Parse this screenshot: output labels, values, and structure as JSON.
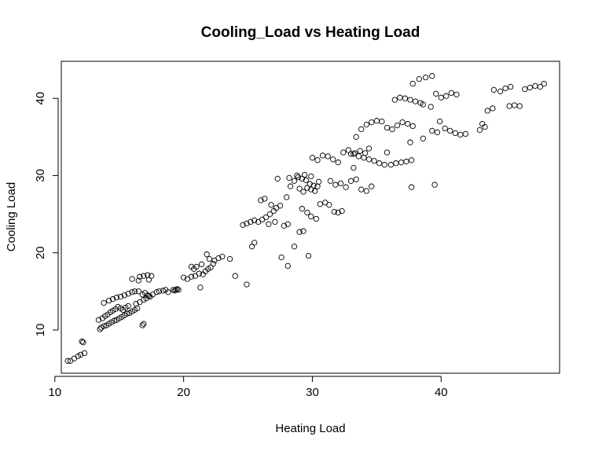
{
  "chart_data": {
    "type": "scatter",
    "title": "Cooling_Load vs Heating Load",
    "xlabel": "Heating Load",
    "ylabel": "Cooling Load",
    "xlim": [
      10.5,
      49.2
    ],
    "ylim": [
      4.4,
      44.8
    ],
    "xticks": [
      10,
      20,
      30,
      40
    ],
    "yticks": [
      10,
      20,
      30,
      40
    ],
    "grid": false,
    "points": [
      [
        11.0,
        6.0
      ],
      [
        11.2,
        6.0
      ],
      [
        11.5,
        6.3
      ],
      [
        11.8,
        6.6
      ],
      [
        12.0,
        6.8
      ],
      [
        12.3,
        7.0
      ],
      [
        12.1,
        8.5
      ],
      [
        12.2,
        8.4
      ],
      [
        13.5,
        10.1
      ],
      [
        13.6,
        10.3
      ],
      [
        13.8,
        10.5
      ],
      [
        14.0,
        10.6
      ],
      [
        14.2,
        10.8
      ],
      [
        14.4,
        11.0
      ],
      [
        14.6,
        11.2
      ],
      [
        14.8,
        11.3
      ],
      [
        15.0,
        11.5
      ],
      [
        15.2,
        11.7
      ],
      [
        15.4,
        11.9
      ],
      [
        15.6,
        12.1
      ],
      [
        15.8,
        12.2
      ],
      [
        16.0,
        12.4
      ],
      [
        16.2,
        12.6
      ],
      [
        16.4,
        12.8
      ],
      [
        13.4,
        11.3
      ],
      [
        13.7,
        11.5
      ],
      [
        13.9,
        11.8
      ],
      [
        14.1,
        12.0
      ],
      [
        14.3,
        12.3
      ],
      [
        14.5,
        12.5
      ],
      [
        14.7,
        12.7
      ],
      [
        14.9,
        13.0
      ],
      [
        15.1,
        12.8
      ],
      [
        15.3,
        12.6
      ],
      [
        15.5,
        12.9
      ],
      [
        15.7,
        13.1
      ],
      [
        13.8,
        13.5
      ],
      [
        14.2,
        13.8
      ],
      [
        14.5,
        14.0
      ],
      [
        14.8,
        14.2
      ],
      [
        15.1,
        14.3
      ],
      [
        15.4,
        14.5
      ],
      [
        15.7,
        14.7
      ],
      [
        16.0,
        14.9
      ],
      [
        16.2,
        15.0
      ],
      [
        16.5,
        15.0
      ],
      [
        16.8,
        14.6
      ],
      [
        17.0,
        14.8
      ],
      [
        17.2,
        14.5
      ],
      [
        17.4,
        14.3
      ],
      [
        17.6,
        14.6
      ],
      [
        17.9,
        14.9
      ],
      [
        18.1,
        15.0
      ],
      [
        18.4,
        15.1
      ],
      [
        18.6,
        15.2
      ],
      [
        18.8,
        14.9
      ],
      [
        16.3,
        13.4
      ],
      [
        16.6,
        13.6
      ],
      [
        16.9,
        13.9
      ],
      [
        17.1,
        14.1
      ],
      [
        17.3,
        14.4
      ],
      [
        16.0,
        16.6
      ],
      [
        16.6,
        16.9
      ],
      [
        16.9,
        17.0
      ],
      [
        17.2,
        17.1
      ],
      [
        17.5,
        17.0
      ],
      [
        16.5,
        16.4
      ],
      [
        17.3,
        16.5
      ],
      [
        16.8,
        10.6
      ],
      [
        16.9,
        10.8
      ],
      [
        19.2,
        15.2
      ],
      [
        19.4,
        15.2
      ],
      [
        19.6,
        15.2
      ],
      [
        19.3,
        15.1
      ],
      [
        19.5,
        15.3
      ],
      [
        20.0,
        16.8
      ],
      [
        20.3,
        16.6
      ],
      [
        20.6,
        16.9
      ],
      [
        20.9,
        17.0
      ],
      [
        21.2,
        17.3
      ],
      [
        21.5,
        17.2
      ],
      [
        21.7,
        17.6
      ],
      [
        21.9,
        17.9
      ],
      [
        22.1,
        18.1
      ],
      [
        22.3,
        18.6
      ],
      [
        21.4,
        18.5
      ],
      [
        21.0,
        18.2
      ],
      [
        21.3,
        15.5
      ],
      [
        22.0,
        19.2
      ],
      [
        22.4,
        19.0
      ],
      [
        22.7,
        19.3
      ],
      [
        23.0,
        19.5
      ],
      [
        21.8,
        19.8
      ],
      [
        23.6,
        19.2
      ],
      [
        24.0,
        17.0
      ],
      [
        24.9,
        15.9
      ],
      [
        20.6,
        18.2
      ],
      [
        20.8,
        17.9
      ],
      [
        24.6,
        23.6
      ],
      [
        24.9,
        23.8
      ],
      [
        25.2,
        24.0
      ],
      [
        25.5,
        24.2
      ],
      [
        25.8,
        24.0
      ],
      [
        26.1,
        24.3
      ],
      [
        26.4,
        24.6
      ],
      [
        26.7,
        25.0
      ],
      [
        27.0,
        25.4
      ],
      [
        25.3,
        20.8
      ],
      [
        25.5,
        21.3
      ],
      [
        26.0,
        26.8
      ],
      [
        26.3,
        27.0
      ],
      [
        26.8,
        26.2
      ],
      [
        27.2,
        25.8
      ],
      [
        27.5,
        26.1
      ],
      [
        27.8,
        23.5
      ],
      [
        28.1,
        23.7
      ],
      [
        27.6,
        19.4
      ],
      [
        28.1,
        18.3
      ],
      [
        28.6,
        20.8
      ],
      [
        29.0,
        22.7
      ],
      [
        29.3,
        22.8
      ],
      [
        29.7,
        19.6
      ],
      [
        28.0,
        27.2
      ],
      [
        28.3,
        28.6
      ],
      [
        28.6,
        29.3
      ],
      [
        28.9,
        29.8
      ],
      [
        29.2,
        29.6
      ],
      [
        29.5,
        29.4
      ],
      [
        29.8,
        28.9
      ],
      [
        30.1,
        28.7
      ],
      [
        30.4,
        28.6
      ],
      [
        28.2,
        29.7
      ],
      [
        28.8,
        30.0
      ],
      [
        29.4,
        30.1
      ],
      [
        29.9,
        29.9
      ],
      [
        30.5,
        29.2
      ],
      [
        29.6,
        28.4
      ],
      [
        29.9,
        28.2
      ],
      [
        30.2,
        28.0
      ],
      [
        29.3,
        27.9
      ],
      [
        29.0,
        28.3
      ],
      [
        29.2,
        25.7
      ],
      [
        29.6,
        25.2
      ],
      [
        29.9,
        24.7
      ],
      [
        30.3,
        24.4
      ],
      [
        30.6,
        26.3
      ],
      [
        31.0,
        26.5
      ],
      [
        31.3,
        26.2
      ],
      [
        31.7,
        25.3
      ],
      [
        32.0,
        25.2
      ],
      [
        32.3,
        25.4
      ],
      [
        30.0,
        32.3
      ],
      [
        30.4,
        32.0
      ],
      [
        30.8,
        32.6
      ],
      [
        31.2,
        32.5
      ],
      [
        31.6,
        32.1
      ],
      [
        32.0,
        31.7
      ],
      [
        32.4,
        33.0
      ],
      [
        32.8,
        33.3
      ],
      [
        33.2,
        32.8
      ],
      [
        33.6,
        32.5
      ],
      [
        34.0,
        32.3
      ],
      [
        34.4,
        32.1
      ],
      [
        34.8,
        31.9
      ],
      [
        35.2,
        31.6
      ],
      [
        35.6,
        31.4
      ],
      [
        33.0,
        32.8
      ],
      [
        33.3,
        32.9
      ],
      [
        33.7,
        33.2
      ],
      [
        34.1,
        32.9
      ],
      [
        31.4,
        29.3
      ],
      [
        31.8,
        28.8
      ],
      [
        32.2,
        29.0
      ],
      [
        32.6,
        28.5
      ],
      [
        33.0,
        29.3
      ],
      [
        33.4,
        29.5
      ],
      [
        33.8,
        28.2
      ],
      [
        34.2,
        28.0
      ],
      [
        34.6,
        28.6
      ],
      [
        33.4,
        35.0
      ],
      [
        33.8,
        36.0
      ],
      [
        34.2,
        36.6
      ],
      [
        34.6,
        36.9
      ],
      [
        35.0,
        37.1
      ],
      [
        35.4,
        37.0
      ],
      [
        35.8,
        36.2
      ],
      [
        36.2,
        36.0
      ],
      [
        36.6,
        36.5
      ],
      [
        37.0,
        36.9
      ],
      [
        37.4,
        36.7
      ],
      [
        37.8,
        36.4
      ],
      [
        36.4,
        39.8
      ],
      [
        36.8,
        40.1
      ],
      [
        37.2,
        40.0
      ],
      [
        37.6,
        39.8
      ],
      [
        38.0,
        39.6
      ],
      [
        38.4,
        39.4
      ],
      [
        37.8,
        41.9
      ],
      [
        38.3,
        42.5
      ],
      [
        38.8,
        42.7
      ],
      [
        39.3,
        42.9
      ],
      [
        38.6,
        39.2
      ],
      [
        39.2,
        38.9
      ],
      [
        39.6,
        40.6
      ],
      [
        40.0,
        40.1
      ],
      [
        40.4,
        40.3
      ],
      [
        40.8,
        40.7
      ],
      [
        41.2,
        40.5
      ],
      [
        39.9,
        37.0
      ],
      [
        40.3,
        36.1
      ],
      [
        40.7,
        35.8
      ],
      [
        41.1,
        35.5
      ],
      [
        41.5,
        35.3
      ],
      [
        41.9,
        35.4
      ],
      [
        39.3,
        35.8
      ],
      [
        39.7,
        35.6
      ],
      [
        38.6,
        34.8
      ],
      [
        37.6,
        34.3
      ],
      [
        36.1,
        31.4
      ],
      [
        36.5,
        31.6
      ],
      [
        36.9,
        31.7
      ],
      [
        37.3,
        31.8
      ],
      [
        37.7,
        32.0
      ],
      [
        37.7,
        28.5
      ],
      [
        39.5,
        28.8
      ],
      [
        43.0,
        35.9
      ],
      [
        43.4,
        36.3
      ],
      [
        43.2,
        36.7
      ],
      [
        43.6,
        38.4
      ],
      [
        44.0,
        38.7
      ],
      [
        44.1,
        41.1
      ],
      [
        44.6,
        40.9
      ],
      [
        45.0,
        41.3
      ],
      [
        45.4,
        41.5
      ],
      [
        45.3,
        39.0
      ],
      [
        45.7,
        39.1
      ],
      [
        46.1,
        39.0
      ],
      [
        46.5,
        41.2
      ],
      [
        46.9,
        41.4
      ],
      [
        47.3,
        41.6
      ],
      [
        47.7,
        41.5
      ],
      [
        48.0,
        41.9
      ],
      [
        33.2,
        31.0
      ],
      [
        34.4,
        33.5
      ],
      [
        35.8,
        33.0
      ],
      [
        27.3,
        29.6
      ],
      [
        26.6,
        23.7
      ],
      [
        27.1,
        24.0
      ]
    ]
  }
}
